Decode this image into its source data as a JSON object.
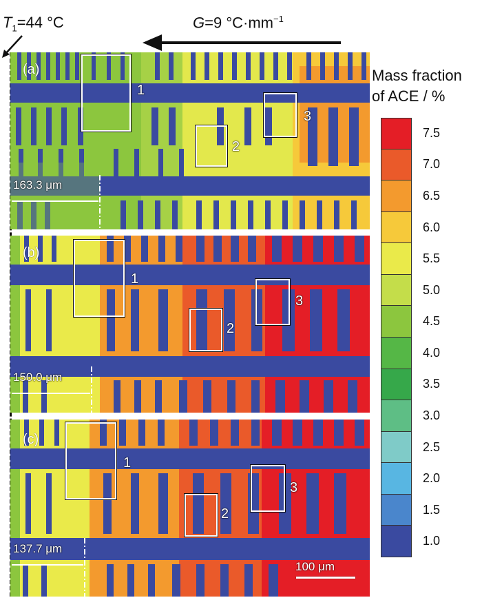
{
  "header": {
    "t1_symbol": "T",
    "t1_sub": "1",
    "t1_value": "=44 °C",
    "g_symbol": "G",
    "g_value": "=9 °C·mm",
    "g_exp": "−1"
  },
  "panels": [
    {
      "letter": "(a)",
      "distance": "163.3 μm",
      "regions": [
        "1",
        "2",
        "3"
      ]
    },
    {
      "letter": "(b)",
      "distance": "150.0 μm",
      "regions": [
        "1",
        "2",
        "3"
      ]
    },
    {
      "letter": "(c)",
      "distance": "137.7 μm",
      "regions": [
        "1",
        "2",
        "3"
      ]
    }
  ],
  "scale_bar": {
    "label": "100 μm"
  },
  "legend": {
    "title_line1": "Mass fraction",
    "title_line2": "of ACE / %",
    "ticks": [
      "7.5",
      "7.0",
      "6.5",
      "6.0",
      "5.5",
      "5.0",
      "4.5",
      "4.0",
      "3.5",
      "3.0",
      "2.5",
      "2.0",
      "1.5",
      "1.0"
    ],
    "colors": [
      "#e41e26",
      "#ea5a2a",
      "#f39a2e",
      "#f6c93a",
      "#eaea4a",
      "#c4dd4a",
      "#8cc63e",
      "#55b746",
      "#36a84a",
      "#5ebe85",
      "#7fcbc8",
      "#58b6e2",
      "#4a86cc",
      "#3a4aa0"
    ]
  }
}
